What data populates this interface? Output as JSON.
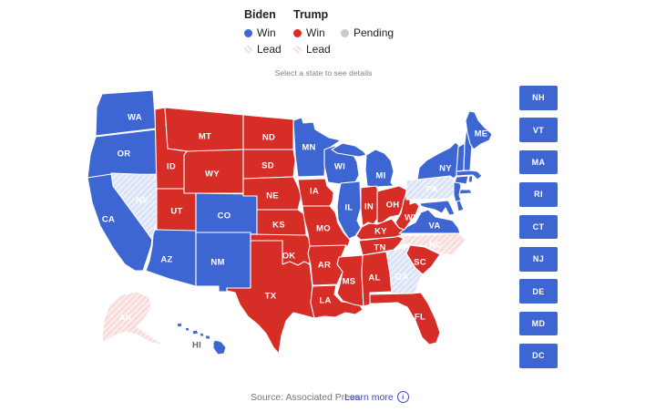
{
  "legend": {
    "biden_header": "Biden",
    "trump_header": "Trump",
    "biden_win": "Win",
    "biden_lead": "Lead",
    "trump_win": "Win",
    "trump_lead": "Lead",
    "pending": "Pending",
    "hint": "Select a state to see details"
  },
  "colors": {
    "biden_win": "#3e66d3",
    "biden_lead": "#dbe3f6",
    "trump_win": "#d62d27",
    "trump_lead": "#f8dcda",
    "pending": "#c9cacb",
    "map_label": "#ffffff",
    "hi_label": "#5f6368",
    "link": "#3c45c8"
  },
  "map": {
    "states": [
      {
        "id": "WA",
        "label": "WA",
        "status": "biden_win"
      },
      {
        "id": "OR",
        "label": "OR",
        "status": "biden_win"
      },
      {
        "id": "CA",
        "label": "CA",
        "status": "biden_win"
      },
      {
        "id": "NV",
        "label": "NV",
        "status": "biden_lead"
      },
      {
        "id": "ID",
        "label": "ID",
        "status": "trump_win"
      },
      {
        "id": "MT",
        "label": "MT",
        "status": "trump_win"
      },
      {
        "id": "WY",
        "label": "WY",
        "status": "trump_win"
      },
      {
        "id": "UT",
        "label": "UT",
        "status": "trump_win"
      },
      {
        "id": "CO",
        "label": "CO",
        "status": "biden_win"
      },
      {
        "id": "AZ",
        "label": "AZ",
        "status": "biden_win"
      },
      {
        "id": "NM",
        "label": "NM",
        "status": "biden_win"
      },
      {
        "id": "ND",
        "label": "ND",
        "status": "trump_win"
      },
      {
        "id": "SD",
        "label": "SD",
        "status": "trump_win"
      },
      {
        "id": "NE",
        "label": "NE",
        "status": "trump_win"
      },
      {
        "id": "KS",
        "label": "KS",
        "status": "trump_win"
      },
      {
        "id": "OK",
        "label": "OK",
        "status": "trump_win"
      },
      {
        "id": "TX",
        "label": "TX",
        "status": "trump_win"
      },
      {
        "id": "MN",
        "label": "MN",
        "status": "biden_win"
      },
      {
        "id": "IA",
        "label": "IA",
        "status": "trump_win"
      },
      {
        "id": "MO",
        "label": "MO",
        "status": "trump_win"
      },
      {
        "id": "AR",
        "label": "AR",
        "status": "trump_win"
      },
      {
        "id": "LA",
        "label": "LA",
        "status": "trump_win"
      },
      {
        "id": "WI",
        "label": "WI",
        "status": "biden_win"
      },
      {
        "id": "IL",
        "label": "IL",
        "status": "biden_win"
      },
      {
        "id": "MS",
        "label": "MS",
        "status": "trump_win"
      },
      {
        "id": "MI",
        "label": "MI",
        "status": "biden_win"
      },
      {
        "id": "IN",
        "label": "IN",
        "status": "trump_win"
      },
      {
        "id": "OH",
        "label": "OH",
        "status": "trump_win"
      },
      {
        "id": "KY",
        "label": "KY",
        "status": "trump_win"
      },
      {
        "id": "TN",
        "label": "TN",
        "status": "trump_win"
      },
      {
        "id": "AL",
        "label": "AL",
        "status": "trump_win"
      },
      {
        "id": "GA",
        "label": "GA",
        "status": "biden_lead"
      },
      {
        "id": "FL",
        "label": "FL",
        "status": "trump_win"
      },
      {
        "id": "SC",
        "label": "SC",
        "status": "trump_win"
      },
      {
        "id": "NC",
        "label": "NC",
        "status": "trump_lead"
      },
      {
        "id": "VA",
        "label": "VA",
        "status": "biden_win"
      },
      {
        "id": "WV",
        "label": "WV",
        "status": "trump_win"
      },
      {
        "id": "PA",
        "label": "PA",
        "status": "biden_lead"
      },
      {
        "id": "NY",
        "label": "NY",
        "status": "biden_win"
      },
      {
        "id": "NJ",
        "label": "",
        "status": "biden_win"
      },
      {
        "id": "VT",
        "label": "",
        "status": "biden_win"
      },
      {
        "id": "NH",
        "label": "",
        "status": "biden_win"
      },
      {
        "id": "ME",
        "label": "ME",
        "status": "biden_win"
      },
      {
        "id": "MA",
        "label": "",
        "status": "biden_win"
      },
      {
        "id": "CT",
        "label": "",
        "status": "biden_win"
      },
      {
        "id": "RI",
        "label": "",
        "status": "biden_win"
      },
      {
        "id": "MD",
        "label": "",
        "status": "biden_win"
      },
      {
        "id": "DE",
        "label": "",
        "status": "biden_win"
      },
      {
        "id": "AK",
        "label": "AK",
        "status": "trump_lead"
      },
      {
        "id": "HI",
        "label": "HI",
        "status": "biden_win"
      }
    ]
  },
  "small_states": [
    {
      "id": "NH",
      "label": "NH",
      "status": "biden_win"
    },
    {
      "id": "VT",
      "label": "VT",
      "status": "biden_win"
    },
    {
      "id": "MA",
      "label": "MA",
      "status": "biden_win"
    },
    {
      "id": "RI",
      "label": "RI",
      "status": "biden_win"
    },
    {
      "id": "CT",
      "label": "CT",
      "status": "biden_win"
    },
    {
      "id": "NJ",
      "label": "NJ",
      "status": "biden_win"
    },
    {
      "id": "DE",
      "label": "DE",
      "status": "biden_win"
    },
    {
      "id": "MD",
      "label": "MD",
      "status": "biden_win"
    },
    {
      "id": "DC",
      "label": "DC",
      "status": "biden_win"
    }
  ],
  "footer": {
    "source": "Source: Associated Press",
    "learn_more": "Learn more",
    "info_icon": "i"
  }
}
